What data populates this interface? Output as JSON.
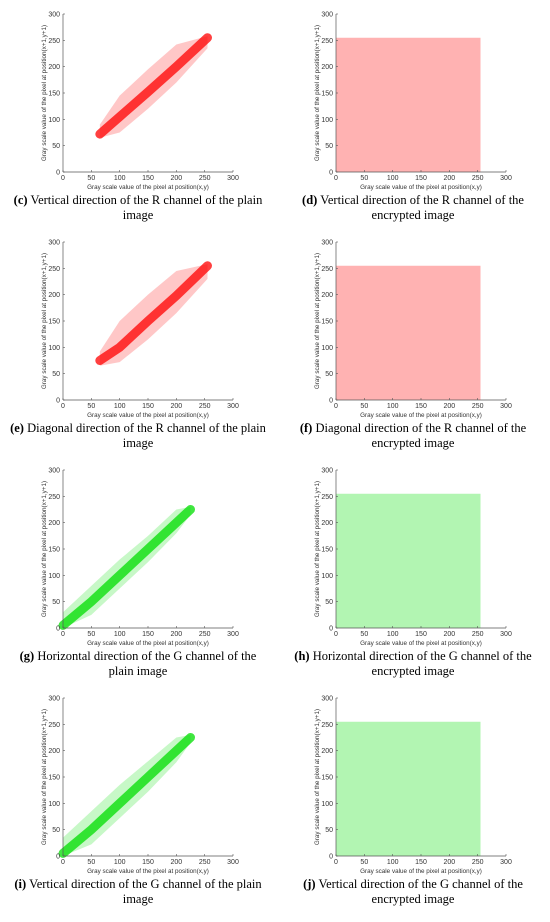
{
  "chart_data": [
    {
      "type": "band",
      "caption_label": "(c)",
      "caption_text": "Vertical direction of the R channel of the plain image",
      "xlabel": "Gray scale value of the pixel at position(x,y)",
      "ylabel": "Gray scale value of the pixel at position(x+1,y+1)",
      "xlim": [
        0,
        300
      ],
      "ylim": [
        0,
        300
      ],
      "xticks": [
        0,
        50,
        100,
        150,
        200,
        250,
        300
      ],
      "yticks": [
        0,
        50,
        100,
        150,
        200,
        250,
        300
      ],
      "color": "#ff0000",
      "x": [
        65,
        100,
        150,
        200,
        255
      ],
      "lower": [
        65,
        75,
        120,
        170,
        235
      ],
      "upper": [
        90,
        145,
        195,
        242,
        258
      ],
      "center": [
        72,
        105,
        152,
        200,
        255
      ]
    },
    {
      "type": "band",
      "caption_label": "(d)",
      "caption_text": "Vertical direction of the R channel of the encrypted image",
      "xlabel": "Gray scale value of the pixel at position(x,y)",
      "ylabel": "Gray scale value of the pixel at position(x+1,y+1)",
      "xlim": [
        0,
        300
      ],
      "ylim": [
        0,
        300
      ],
      "xticks": [
        0,
        50,
        100,
        150,
        200,
        250,
        300
      ],
      "yticks": [
        0,
        50,
        100,
        150,
        200,
        250,
        300
      ],
      "color": "#ff0000",
      "x": [
        0,
        255
      ],
      "lower": [
        0,
        0
      ],
      "upper": [
        255,
        255
      ]
    },
    {
      "type": "band",
      "caption_label": "(e)",
      "caption_text": "Diagonal direction of the R channel of the plain image",
      "xlabel": "Gray scale value of the pixel at position(x,y)",
      "ylabel": "Gray scale value of the pixel at position(x+1,y+1)",
      "xlim": [
        0,
        300
      ],
      "ylim": [
        0,
        300
      ],
      "xticks": [
        0,
        50,
        100,
        150,
        200,
        250,
        300
      ],
      "yticks": [
        0,
        50,
        100,
        150,
        200,
        250,
        300
      ],
      "color": "#ff0000",
      "x": [
        65,
        100,
        150,
        200,
        255
      ],
      "lower": [
        65,
        72,
        115,
        165,
        230
      ],
      "upper": [
        92,
        150,
        200,
        245,
        258
      ],
      "center": [
        75,
        100,
        150,
        198,
        255
      ]
    },
    {
      "type": "band",
      "caption_label": "(f)",
      "caption_text": "Diagonal direction of the R channel of the encrypted image",
      "xlabel": "Gray scale value of the pixel at position(x,y)",
      "ylabel": "Gray scale value of the pixel at position(x+1,y+1)",
      "xlim": [
        0,
        300
      ],
      "ylim": [
        0,
        300
      ],
      "xticks": [
        0,
        50,
        100,
        150,
        200,
        250,
        300
      ],
      "yticks": [
        0,
        50,
        100,
        150,
        200,
        250,
        300
      ],
      "color": "#ff0000",
      "x": [
        0,
        255
      ],
      "lower": [
        0,
        0
      ],
      "upper": [
        255,
        255
      ]
    },
    {
      "type": "band",
      "caption_label": "(g)",
      "caption_text": "Horizontal direction of the G channel of the plain image",
      "xlabel": "Gray scale value of the pixel at position(x,y)",
      "ylabel": "Gray scale value of the pixel at position(x+1,y+1)",
      "xlim": [
        0,
        300
      ],
      "ylim": [
        0,
        300
      ],
      "xticks": [
        0,
        50,
        100,
        150,
        200,
        250,
        300
      ],
      "yticks": [
        0,
        50,
        100,
        150,
        200,
        250,
        300
      ],
      "color": "#00dd00",
      "x": [
        0,
        50,
        100,
        150,
        200,
        225
      ],
      "lower": [
        0,
        25,
        75,
        125,
        180,
        215
      ],
      "upper": [
        30,
        80,
        130,
        175,
        225,
        230
      ],
      "center": [
        5,
        50,
        100,
        150,
        200,
        225
      ]
    },
    {
      "type": "band",
      "caption_label": "(h)",
      "caption_text": "Horizontal direction of the G channel of the encrypted image",
      "xlabel": "Gray scale value of the pixel at position(x,y)",
      "ylabel": "Gray scale value of the pixel at position(x+1,y+1)",
      "xlim": [
        0,
        300
      ],
      "ylim": [
        0,
        300
      ],
      "xticks": [
        0,
        50,
        100,
        150,
        200,
        250,
        300
      ],
      "yticks": [
        0,
        50,
        100,
        150,
        200,
        250,
        300
      ],
      "color": "#00dd00",
      "x": [
        0,
        255
      ],
      "lower": [
        0,
        0
      ],
      "upper": [
        255,
        255
      ]
    },
    {
      "type": "band",
      "caption_label": "(i)",
      "caption_text": "Vertical direction of the G channel of the plain image",
      "xlabel": "Gray scale value of the pixel at position(x,y)",
      "ylabel": "Gray scale value of the pixel at position(x+1,y+1)",
      "xlim": [
        0,
        300
      ],
      "ylim": [
        0,
        300
      ],
      "xticks": [
        0,
        50,
        100,
        150,
        200,
        250,
        300
      ],
      "yticks": [
        0,
        50,
        100,
        150,
        200,
        250,
        300
      ],
      "color": "#00dd00",
      "x": [
        0,
        50,
        100,
        150,
        200,
        225
      ],
      "lower": [
        0,
        22,
        72,
        122,
        178,
        215
      ],
      "upper": [
        35,
        85,
        135,
        180,
        225,
        230
      ],
      "center": [
        5,
        50,
        100,
        150,
        200,
        225
      ]
    },
    {
      "type": "band",
      "caption_label": "(j)",
      "caption_text": "Vertical direction of the G channel of the encrypted image",
      "xlabel": "Gray scale value of the pixel at position(x,y)",
      "ylabel": "Gray scale value of the pixel at position(x+1,y+1)",
      "xlim": [
        0,
        300
      ],
      "ylim": [
        0,
        300
      ],
      "xticks": [
        0,
        50,
        100,
        150,
        200,
        250,
        300
      ],
      "yticks": [
        0,
        50,
        100,
        150,
        200,
        250,
        300
      ],
      "color": "#00dd00",
      "x": [
        0,
        255
      ],
      "lower": [
        0,
        0
      ],
      "upper": [
        255,
        255
      ]
    }
  ]
}
